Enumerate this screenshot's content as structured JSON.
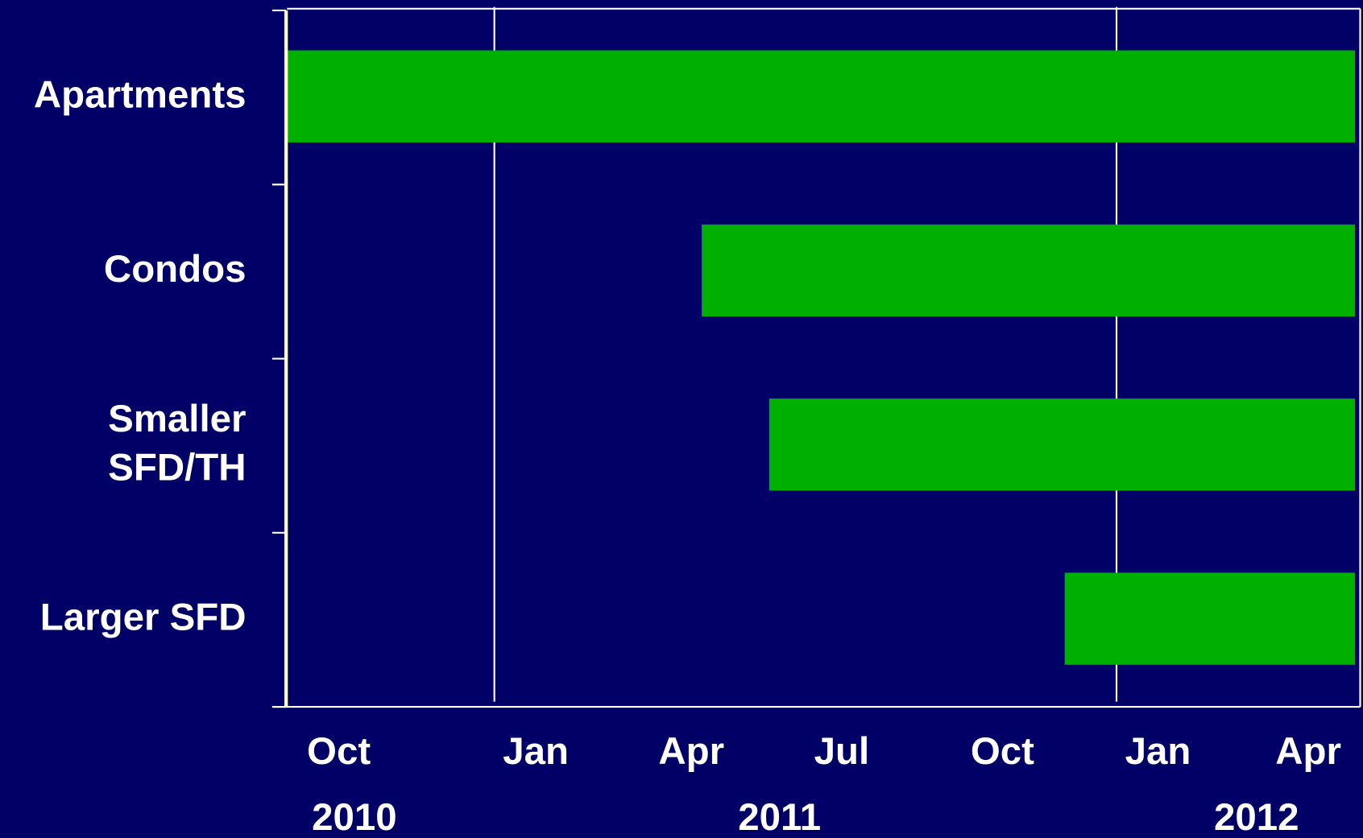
{
  "chart_data": {
    "type": "gantt",
    "categories": [
      "Apartments",
      "Condos",
      [
        "Smaller",
        "SFD/TH"
      ],
      "Larger SFD"
    ],
    "starts": [
      8,
      16,
      17.3,
      23
    ],
    "ends": [
      28.6,
      28.6,
      28.6,
      28.6
    ],
    "color": "#00b000",
    "xlim": [
      8,
      28.7
    ],
    "xticks": [
      {
        "value": 9,
        "label": "Oct"
      },
      {
        "value": 12.8,
        "label": "Jan"
      },
      {
        "value": 15.8,
        "label": "Apr"
      },
      {
        "value": 18.7,
        "label": "Jul"
      },
      {
        "value": 21.8,
        "label": "Oct"
      },
      {
        "value": 24.8,
        "label": "Jan"
      },
      {
        "value": 27.7,
        "label": "Apr"
      }
    ],
    "year_labels": [
      {
        "value": 9.3,
        "label": "2010"
      },
      {
        "value": 17.5,
        "label": "2011"
      },
      {
        "value": 26.7,
        "label": "2012"
      }
    ],
    "gridlines": [
      12,
      24
    ]
  }
}
